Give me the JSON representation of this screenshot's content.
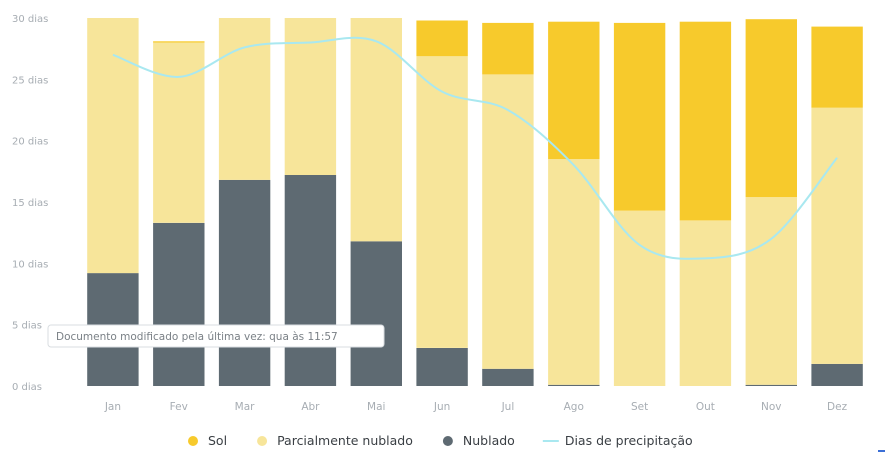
{
  "chart_data": {
    "type": "bar",
    "stacked": true,
    "categories": [
      "Jan",
      "Fev",
      "Mar",
      "Abr",
      "Mai",
      "Jun",
      "Jul",
      "Ago",
      "Set",
      "Out",
      "Nov",
      "Dez"
    ],
    "y_ticks": [
      "0 dias",
      "5 dias",
      "10 dias",
      "15 dias",
      "20 dias",
      "25 dias",
      "30 dias"
    ],
    "ylim": [
      0,
      30
    ],
    "grid": false,
    "legend_position": "bottom",
    "series": [
      {
        "name": "Nublado",
        "color": "#5e6a72",
        "values": [
          9.2,
          13.3,
          16.8,
          17.2,
          11.8,
          3.1,
          1.4,
          0.1,
          0,
          0,
          0.1,
          1.8
        ]
      },
      {
        "name": "Parcialmente nublado",
        "color": "#f7e59a",
        "values": [
          20.8,
          14.7,
          13.2,
          12.8,
          18.2,
          23.8,
          24.0,
          18.4,
          14.3,
          13.5,
          15.3,
          20.9
        ]
      },
      {
        "name": "Sol",
        "color": "#f7ca2c",
        "values": [
          0,
          0.1,
          0,
          0,
          0,
          2.9,
          4.2,
          11.2,
          15.3,
          16.2,
          14.5,
          6.6
        ]
      }
    ],
    "line_series": {
      "name": "Dias de precipitação",
      "color": "#a9e8f0",
      "values": [
        27.0,
        25.2,
        27.6,
        28.0,
        28.1,
        24.0,
        22.5,
        18.0,
        11.5,
        10.4,
        12.0,
        18.6
      ]
    }
  },
  "tooltip": {
    "text": "Documento modificado pela última vez: qua às 11:57"
  }
}
